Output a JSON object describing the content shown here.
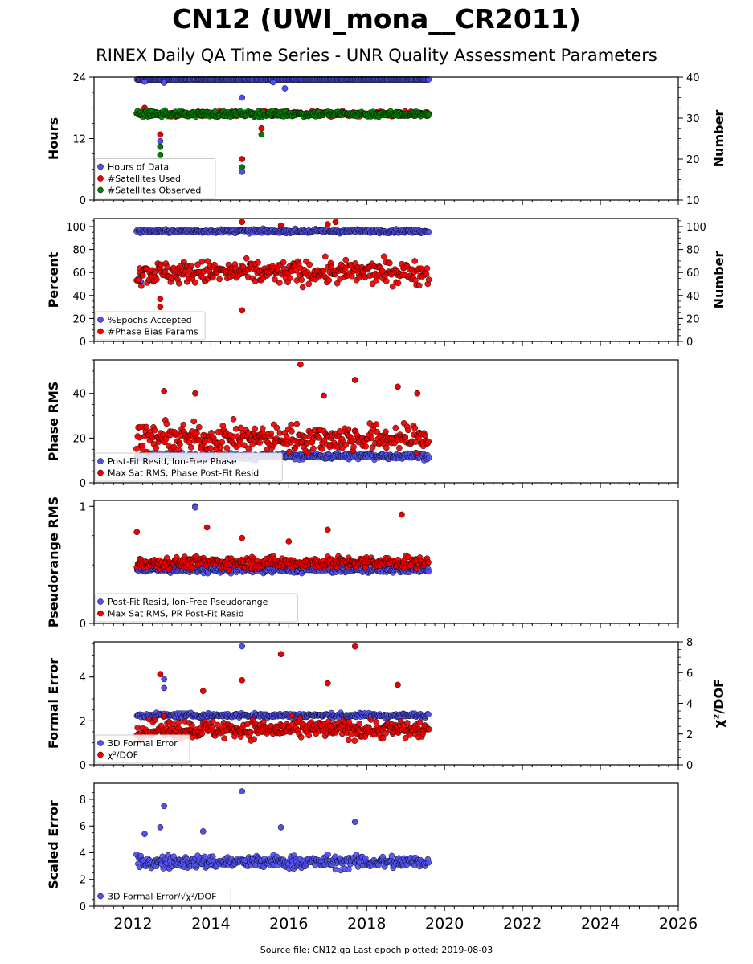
{
  "title": "CN12 (UWI_mona__CR2011)",
  "subtitle": "RINEX Daily QA Time Series - UNR Quality Assessment Parameters",
  "footer": "Source file: CN12.qa Last epoch plotted: 2019-08-03",
  "colors": {
    "blue": "#5050f0",
    "red": "#ee0000",
    "green": "#008000"
  },
  "chart_data": [
    {
      "type": "scatter",
      "ylabel": "Hours",
      "y2label": "Number",
      "ylim": [
        0,
        24
      ],
      "y2lim": [
        10,
        40
      ],
      "yticks": [
        "0",
        "12",
        "24"
      ],
      "y2ticks": [
        "10",
        "20",
        "30",
        "40"
      ],
      "xlim": [
        2011.0,
        2026.0
      ],
      "x_range_of_data": [
        2012.1,
        2019.59
      ],
      "series": [
        {
          "name": "Hours of Data",
          "axis": "left",
          "color": "blue",
          "typical": 24.0,
          "spread": 0.15,
          "outliers": [
            [
              2012.3,
              23.1
            ],
            [
              2012.8,
              22.9
            ],
            [
              2012.7,
              11.5
            ],
            [
              2014.8,
              5.5
            ],
            [
              2014.8,
              20.0
            ],
            [
              2015.9,
              21.8
            ],
            [
              2015.6,
              23.0
            ]
          ]
        },
        {
          "name": "#Satellites Used",
          "axis": "right",
          "color": "red",
          "typical": 31.0,
          "spread": 0.6,
          "outliers": [
            [
              2012.3,
              32.5
            ],
            [
              2012.7,
              26.0
            ],
            [
              2014.8,
              20.0
            ],
            [
              2015.3,
              27.5
            ]
          ]
        },
        {
          "name": "#Satellites Observed",
          "axis": "right",
          "color": "green",
          "typical": 31.0,
          "spread": 0.7,
          "outliers": [
            [
              2012.7,
              23.0
            ],
            [
              2012.7,
              21.0
            ],
            [
              2014.8,
              18.0
            ],
            [
              2015.3,
              26.0
            ]
          ]
        }
      ],
      "legend": "lower-left"
    },
    {
      "type": "scatter",
      "ylabel": "Percent",
      "y2label": "Number",
      "ylim": [
        0,
        107
      ],
      "y2lim": [
        0,
        107
      ],
      "yticks": [
        "0",
        "20",
        "40",
        "60",
        "80",
        "100"
      ],
      "y2ticks": [
        "0",
        "20",
        "40",
        "60",
        "80",
        "100"
      ],
      "xlim": [
        2011.0,
        2026.0
      ],
      "series": [
        {
          "name": "%Epochs Accepted",
          "axis": "left",
          "color": "blue",
          "typical": 96.0,
          "spread": 1.6,
          "outliers": [
            [
              2012.15,
              55.0
            ],
            [
              2012.2,
              52.0
            ]
          ]
        },
        {
          "name": "#Phase Bias Params",
          "axis": "right",
          "color": "red",
          "typical": 60.0,
          "spread": 10.0,
          "outliers": [
            [
              2014.8,
              104.0
            ],
            [
              2015.8,
              101.0
            ],
            [
              2017.0,
              102.0
            ],
            [
              2017.2,
              104.0
            ],
            [
              2014.8,
              27.0
            ],
            [
              2012.7,
              37.0
            ],
            [
              2012.7,
              30.0
            ]
          ]
        }
      ],
      "legend": "lower-left"
    },
    {
      "type": "scatter",
      "ylabel": "Phase RMS",
      "ylim": [
        0,
        55
      ],
      "yticks": [
        "0",
        "20",
        "40"
      ],
      "xlim": [
        2011.0,
        2026.0
      ],
      "series": [
        {
          "name": "Post-Fit Resid, Ion-Free Phase",
          "axis": "left",
          "color": "blue",
          "typical": 12.0,
          "spread": 1.5,
          "outliers": []
        },
        {
          "name": "Max Sat RMS, Phase Post-Fit Resid",
          "axis": "left",
          "color": "red",
          "typical": 20.0,
          "spread": 6.0,
          "outliers": [
            [
              2016.3,
              53.0
            ],
            [
              2017.7,
              46.0
            ],
            [
              2018.8,
              43.0
            ],
            [
              2012.8,
              41.0
            ],
            [
              2013.6,
              40.0
            ],
            [
              2019.3,
              40.0
            ],
            [
              2016.9,
              39.0
            ]
          ]
        }
      ],
      "legend": "lower-left"
    },
    {
      "type": "scatter",
      "ylabel": "Pseudorange RMS",
      "ylim": [
        0,
        1.05
      ],
      "yticks": [
        "0",
        "1"
      ],
      "xlim": [
        2011.0,
        2026.0
      ],
      "series": [
        {
          "name": "Post-Fit Resid, Ion-Free Pseudorange",
          "axis": "left",
          "color": "blue",
          "typical": 0.46,
          "spread": 0.03,
          "outliers": [
            [
              2013.6,
              1.0
            ],
            [
              2013.6,
              0.99
            ]
          ]
        },
        {
          "name": "Max Sat RMS, PR Post-Fit Resid",
          "axis": "left",
          "color": "red",
          "typical": 0.52,
          "spread": 0.05,
          "outliers": [
            [
              2018.9,
              0.93
            ],
            [
              2013.9,
              0.82
            ],
            [
              2017.0,
              0.8
            ],
            [
              2012.1,
              0.78
            ],
            [
              2014.8,
              0.73
            ],
            [
              2016.0,
              0.7
            ]
          ]
        }
      ],
      "legend": "lower-left"
    },
    {
      "type": "scatter",
      "ylabel": "Formal Error",
      "y2label": "χ²/DOF",
      "ylim": [
        0,
        5.6
      ],
      "y2lim": [
        0,
        8
      ],
      "yticks": [
        "0",
        "2",
        "4"
      ],
      "y2ticks": [
        "0",
        "2",
        "4",
        "6",
        "8"
      ],
      "xlim": [
        2011.0,
        2026.0
      ],
      "series": [
        {
          "name": "3D Formal Error",
          "axis": "left",
          "color": "blue",
          "typical": 2.25,
          "spread": 0.1,
          "outliers": [
            [
              2014.8,
              5.4
            ],
            [
              2012.8,
              3.9
            ],
            [
              2012.8,
              3.5
            ]
          ]
        },
        {
          "name": "χ²/DOF",
          "axis": "right",
          "color": "red",
          "typical": 2.3,
          "spread": 0.6,
          "outliers": [
            [
              2017.7,
              7.7
            ],
            [
              2015.8,
              7.2
            ],
            [
              2014.8,
              5.5
            ],
            [
              2012.7,
              5.9
            ],
            [
              2013.8,
              4.8
            ],
            [
              2018.8,
              5.2
            ],
            [
              2017.0,
              5.3
            ]
          ]
        }
      ],
      "legend": "lower-left"
    },
    {
      "type": "scatter",
      "ylabel": "Scaled Error",
      "ylim": [
        0,
        9.2
      ],
      "yticks": [
        "0",
        "2",
        "4",
        "6",
        "8"
      ],
      "xlim": [
        2011.0,
        2026.0
      ],
      "xticks": [
        "2012",
        "2014",
        "2016",
        "2018",
        "2020",
        "2022",
        "2024",
        "2026"
      ],
      "series": [
        {
          "name": "3D Formal Error/√χ²/DOF",
          "axis": "left",
          "color": "blue",
          "typical": 3.3,
          "spread": 0.5,
          "outliers": [
            [
              2014.8,
              8.6
            ],
            [
              2012.8,
              7.5
            ],
            [
              2017.7,
              6.3
            ],
            [
              2012.7,
              5.9
            ],
            [
              2015.8,
              5.9
            ],
            [
              2013.8,
              5.6
            ],
            [
              2012.3,
              5.4
            ]
          ]
        }
      ],
      "legend": "lower-left"
    }
  ]
}
